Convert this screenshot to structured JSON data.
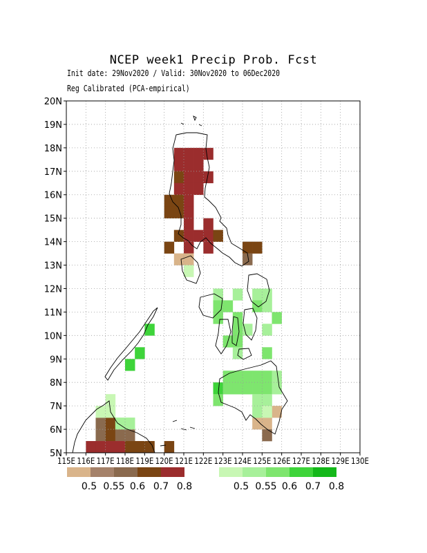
{
  "title": "NCEP week1 Precip Prob. Fcst",
  "subtitle1": "Init date: 29Nov2020 / Valid: 30Nov2020 to 06Dec2020",
  "subtitle2": "Reg Calibrated (PCA-empirical)",
  "lat_ticks": [
    "5N",
    "6N",
    "7N",
    "8N",
    "9N",
    "10N",
    "11N",
    "12N",
    "13N",
    "14N",
    "15N",
    "16N",
    "17N",
    "18N",
    "19N",
    "20N"
  ],
  "lon_ticks": [
    "115E",
    "116E",
    "117E",
    "118E",
    "119E",
    "120E",
    "121E",
    "122E",
    "123E",
    "124E",
    "125E",
    "126E",
    "127E",
    "128E",
    "129E",
    "130E"
  ],
  "extent": {
    "lon": [
      115,
      130
    ],
    "lat": [
      5,
      20
    ]
  },
  "grid": "dotted",
  "legend_dry": {
    "colors": [
      "#d9b48a",
      "#a5826a",
      "#8a6a4e",
      "#7a4513",
      "#9b2d2d"
    ],
    "labels": [
      "0.5",
      "0.55",
      "0.6",
      "0.7",
      "0.8"
    ]
  },
  "legend_wet": {
    "colors": [
      "#c8f7b4",
      "#a7f09a",
      "#7ee56e",
      "#3ed43a",
      "#14b81a"
    ],
    "labels": [
      "0.5",
      "0.55",
      "0.6",
      "0.7",
      "0.8"
    ]
  },
  "chart_data": {
    "type": "heatmap",
    "title": "NCEP week1 Precip Prob. Fcst",
    "cell_size_deg": 0.5,
    "categories_dry": [
      "0.5",
      "0.55",
      "0.6",
      "0.7",
      "0.8"
    ],
    "categories_wet": [
      "0.5",
      "0.55",
      "0.6",
      "0.7",
      "0.8"
    ],
    "cells_dry": [
      [
        120.5,
        17.5,
        4
      ],
      [
        121.0,
        17.5,
        4
      ],
      [
        121.5,
        17.5,
        4
      ],
      [
        122.0,
        17.5,
        4
      ],
      [
        120.5,
        17.0,
        4
      ],
      [
        121.0,
        17.0,
        4
      ],
      [
        121.5,
        17.0,
        4
      ],
      [
        120.5,
        16.5,
        3
      ],
      [
        121.0,
        16.5,
        4
      ],
      [
        121.5,
        16.5,
        4
      ],
      [
        122.0,
        16.5,
        4
      ],
      [
        120.5,
        16.0,
        4
      ],
      [
        121.0,
        16.0,
        4
      ],
      [
        121.5,
        16.0,
        4
      ],
      [
        120.0,
        15.5,
        3
      ],
      [
        120.5,
        15.5,
        3
      ],
      [
        121.0,
        15.5,
        4
      ],
      [
        120.0,
        15.0,
        3
      ],
      [
        120.5,
        15.0,
        3
      ],
      [
        121.0,
        15.0,
        4
      ],
      [
        121.0,
        14.5,
        4
      ],
      [
        122.0,
        14.5,
        4
      ],
      [
        120.5,
        14.0,
        3
      ],
      [
        121.0,
        14.0,
        4
      ],
      [
        121.5,
        14.0,
        4
      ],
      [
        122.0,
        14.0,
        4
      ],
      [
        122.5,
        14.0,
        3
      ],
      [
        120.0,
        13.5,
        3
      ],
      [
        121.0,
        13.5,
        4
      ],
      [
        122.0,
        13.5,
        4
      ],
      [
        124.0,
        13.5,
        3
      ],
      [
        124.5,
        13.5,
        3
      ],
      [
        120.5,
        13.0,
        0
      ],
      [
        121.0,
        13.0,
        0
      ],
      [
        124.0,
        13.0,
        2
      ],
      [
        125.5,
        6.5,
        0
      ],
      [
        124.5,
        6.0,
        0
      ],
      [
        125.0,
        6.0,
        0
      ],
      [
        125.0,
        5.5,
        2
      ],
      [
        116.5,
        6.0,
        2
      ],
      [
        117.0,
        6.0,
        3
      ],
      [
        116.5,
        5.5,
        2
      ],
      [
        117.0,
        5.5,
        3
      ],
      [
        117.5,
        5.5,
        2
      ],
      [
        118.0,
        5.5,
        2
      ],
      [
        116.5,
        5.0,
        4
      ],
      [
        117.0,
        5.0,
        4
      ],
      [
        117.5,
        5.0,
        4
      ],
      [
        118.0,
        5.0,
        3
      ],
      [
        118.5,
        5.0,
        3
      ],
      [
        119.0,
        5.0,
        3
      ],
      [
        120.0,
        5.0,
        3
      ],
      [
        116.0,
        5.0,
        4
      ]
    ],
    "cells_wet": [
      [
        121.0,
        12.5,
        0
      ],
      [
        122.5,
        11.5,
        1
      ],
      [
        123.5,
        11.5,
        1
      ],
      [
        124.5,
        11.5,
        1
      ],
      [
        125.0,
        11.5,
        1
      ],
      [
        122.5,
        11.0,
        2
      ],
      [
        123.0,
        11.0,
        2
      ],
      [
        124.5,
        11.0,
        2
      ],
      [
        125.0,
        11.0,
        1
      ],
      [
        122.5,
        10.5,
        2
      ],
      [
        123.5,
        10.5,
        2
      ],
      [
        125.5,
        10.5,
        2
      ],
      [
        123.5,
        10.0,
        2
      ],
      [
        124.0,
        10.0,
        1
      ],
      [
        125.0,
        10.0,
        1
      ],
      [
        119.0,
        10.0,
        3
      ],
      [
        123.0,
        9.5,
        2
      ],
      [
        123.5,
        9.5,
        2
      ],
      [
        123.5,
        9.0,
        1
      ],
      [
        125.0,
        9.0,
        2
      ],
      [
        118.5,
        9.0,
        3
      ],
      [
        118.0,
        8.5,
        3
      ],
      [
        123.0,
        8.0,
        2
      ],
      [
        123.5,
        8.0,
        2
      ],
      [
        124.0,
        8.0,
        2
      ],
      [
        124.5,
        8.0,
        2
      ],
      [
        125.0,
        8.0,
        2
      ],
      [
        125.5,
        8.0,
        1
      ],
      [
        122.5,
        7.5,
        3
      ],
      [
        123.0,
        7.5,
        2
      ],
      [
        123.5,
        7.5,
        2
      ],
      [
        124.0,
        7.5,
        2
      ],
      [
        124.5,
        7.5,
        2
      ],
      [
        125.0,
        7.5,
        2
      ],
      [
        125.5,
        7.5,
        1
      ],
      [
        122.5,
        7.0,
        2
      ],
      [
        124.5,
        7.0,
        1
      ],
      [
        125.0,
        7.0,
        1
      ],
      [
        124.5,
        6.5,
        1
      ],
      [
        125.0,
        6.5,
        0
      ],
      [
        117.0,
        7.0,
        0
      ],
      [
        116.5,
        6.5,
        0
      ],
      [
        117.0,
        6.5,
        0
      ],
      [
        117.5,
        6.0,
        1
      ],
      [
        118.0,
        6.0,
        1
      ]
    ]
  }
}
